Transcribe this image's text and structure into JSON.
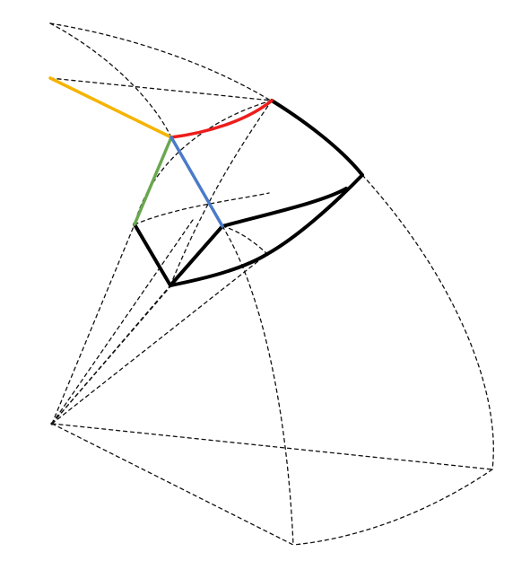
{
  "diagram": {
    "description_label": "",
    "colors": {
      "background": "#ffffff",
      "dashed_line": "#111111",
      "box_edge": "#000000",
      "orange_edge": "#f5b400",
      "red_edge": "#ee1c1c",
      "green_edge": "#6aa84f",
      "blue_edge": "#4a7bc8"
    },
    "elements": [
      "origin-vertex",
      "outer-spherical-shell",
      "projection-rays",
      "curved-box-region",
      "colored-axis-edges"
    ]
  }
}
